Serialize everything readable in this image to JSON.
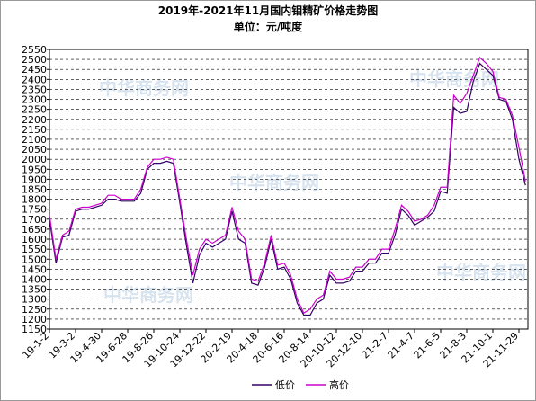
{
  "chart_data": {
    "type": "line",
    "title": "2019年-2021年11月国内钼精矿价格走势图",
    "subtitle": "单位：元/吨度",
    "watermark": "中华商务网",
    "categories": [
      "19-1-2",
      null,
      null,
      null,
      "19-3-2",
      null,
      null,
      null,
      "19-4-30",
      null,
      null,
      null,
      "19-6-28",
      null,
      null,
      null,
      "19-8-26",
      null,
      null,
      null,
      "19-10-24",
      null,
      null,
      null,
      "19-12-22",
      null,
      null,
      null,
      "20-2-19",
      null,
      null,
      null,
      "20-4-18",
      null,
      null,
      null,
      "20-6-16",
      null,
      null,
      null,
      "20-8-14",
      null,
      null,
      null,
      "20-10-12",
      null,
      null,
      null,
      "20-12-10",
      null,
      null,
      null,
      "21-2-7",
      null,
      null,
      null,
      "21-4-7",
      null,
      null,
      null,
      "21-6-5",
      null,
      null,
      null,
      "21-8-3",
      null,
      null,
      null,
      "21-10-1",
      null,
      null,
      null,
      "21-11-29",
      null
    ],
    "series": [
      {
        "name": "低价",
        "color": "#330066",
        "values": [
          1700,
          1480,
          1610,
          1620,
          1740,
          1750,
          1750,
          1760,
          1770,
          1800,
          1800,
          1790,
          1790,
          1790,
          1830,
          1950,
          1980,
          1980,
          1990,
          1980,
          1780,
          1570,
          1380,
          1520,
          1580,
          1560,
          1580,
          1600,
          1740,
          1600,
          1580,
          1380,
          1370,
          1460,
          1600,
          1450,
          1460,
          1400,
          1280,
          1220,
          1220,
          1280,
          1300,
          1420,
          1380,
          1380,
          1390,
          1440,
          1440,
          1480,
          1480,
          1530,
          1530,
          1620,
          1750,
          1720,
          1670,
          1690,
          1710,
          1740,
          1840,
          1830,
          2260,
          2230,
          2240,
          2390,
          2480,
          2450,
          2420,
          2300,
          2290,
          2200,
          2000,
          1870
        ]
      },
      {
        "name": "高价",
        "color": "#cc00cc",
        "values": [
          1720,
          1500,
          1620,
          1640,
          1750,
          1760,
          1760,
          1770,
          1780,
          1820,
          1820,
          1800,
          1800,
          1800,
          1850,
          1960,
          2000,
          2000,
          2010,
          2000,
          1800,
          1600,
          1420,
          1550,
          1600,
          1580,
          1600,
          1620,
          1760,
          1640,
          1600,
          1400,
          1390,
          1480,
          1620,
          1470,
          1480,
          1420,
          1300,
          1230,
          1250,
          1300,
          1320,
          1440,
          1400,
          1400,
          1410,
          1460,
          1460,
          1500,
          1500,
          1550,
          1550,
          1650,
          1770,
          1740,
          1690,
          1700,
          1720,
          1770,
          1860,
          1860,
          2320,
          2280,
          2330,
          2420,
          2510,
          2480,
          2440,
          2310,
          2300,
          2220,
          2060,
          1890
        ]
      }
    ],
    "ylim": [
      1150,
      2550
    ],
    "yticks": [
      1150,
      1200,
      1250,
      1300,
      1350,
      1400,
      1450,
      1500,
      1550,
      1600,
      1650,
      1700,
      1750,
      1800,
      1850,
      1900,
      1950,
      2000,
      2050,
      2100,
      2150,
      2200,
      2250,
      2300,
      2350,
      2400,
      2450,
      2500,
      2550
    ],
    "grid": true
  }
}
